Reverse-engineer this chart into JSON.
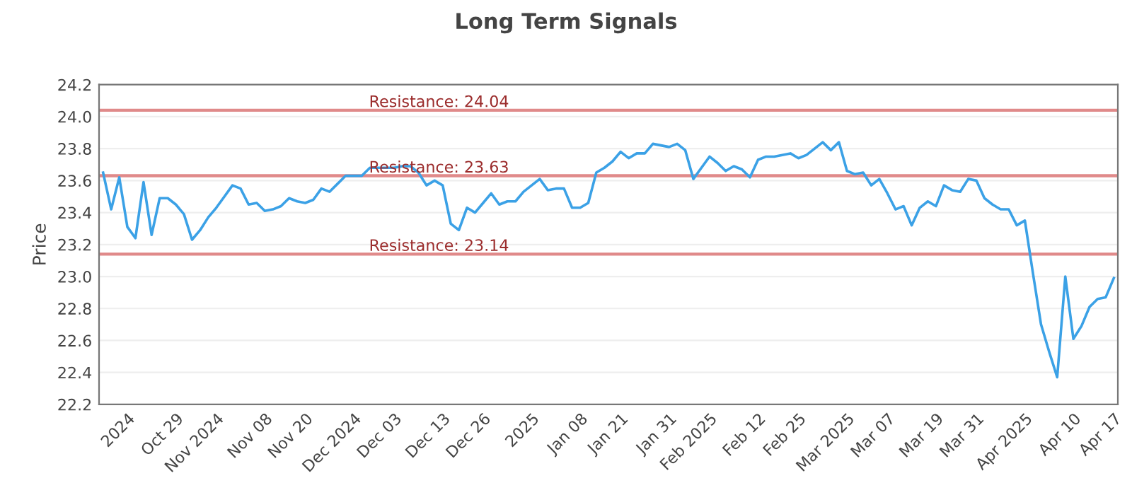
{
  "chart_data": {
    "type": "line",
    "title": "Long Term Signals",
    "ylabel": "Price",
    "categories": [
      null,
      null,
      null,
      "2024",
      null,
      null,
      null,
      null,
      null,
      "Oct 29",
      null,
      null,
      null,
      null,
      "Nov 2024",
      null,
      null,
      null,
      null,
      null,
      "Nov 08",
      null,
      null,
      null,
      null,
      "Nov 20",
      null,
      null,
      null,
      null,
      null,
      "Dec 2024",
      null,
      null,
      null,
      null,
      "Dec 03",
      null,
      null,
      null,
      null,
      null,
      "Dec 13",
      null,
      null,
      null,
      null,
      "Dec 26",
      null,
      null,
      null,
      null,
      null,
      "2025",
      null,
      null,
      null,
      null,
      null,
      "Jan 08",
      null,
      null,
      null,
      null,
      "Jan 21",
      null,
      null,
      null,
      null,
      null,
      "Jan 31",
      null,
      null,
      null,
      null,
      "Feb 2025",
      null,
      null,
      null,
      null,
      null,
      "Feb 12",
      null,
      null,
      null,
      null,
      "Feb 25",
      null,
      null,
      null,
      null,
      null,
      "Mar 2025",
      null,
      null,
      null,
      null,
      "Mar 07",
      null,
      null,
      null,
      null,
      null,
      "Mar 19",
      null,
      null,
      null,
      null,
      "Mar 31",
      null,
      null,
      null,
      null,
      null,
      "Apr 2025",
      null,
      null,
      null,
      null,
      null,
      "Apr 10",
      null,
      null,
      null,
      null,
      "Apr 17"
    ],
    "series": [
      {
        "color": "#3ba1e6",
        "values": [
          23.65,
          23.42,
          23.62,
          23.31,
          23.24,
          23.59,
          23.26,
          23.49,
          23.49,
          23.45,
          23.39,
          23.23,
          23.29,
          23.37,
          23.43,
          23.5,
          23.57,
          23.55,
          23.45,
          23.46,
          23.41,
          23.42,
          23.44,
          23.49,
          23.47,
          23.46,
          23.48,
          23.55,
          23.53,
          23.58,
          23.63,
          23.63,
          23.63,
          23.68,
          23.68,
          23.68,
          23.68,
          23.69,
          23.69,
          23.65,
          23.57,
          23.6,
          23.57,
          23.33,
          23.29,
          23.43,
          23.4,
          23.46,
          23.52,
          23.45,
          23.47,
          23.47,
          23.53,
          23.57,
          23.61,
          23.54,
          23.55,
          23.55,
          23.43,
          23.43,
          23.46,
          23.65,
          23.68,
          23.72,
          23.78,
          23.74,
          23.77,
          23.77,
          23.83,
          23.82,
          23.81,
          23.83,
          23.79,
          23.61,
          23.68,
          23.75,
          23.71,
          23.66,
          23.69,
          23.67,
          23.62,
          23.73,
          23.75,
          23.75,
          23.76,
          23.77,
          23.74,
          23.76,
          23.8,
          23.84,
          23.79,
          23.84,
          23.66,
          23.64,
          23.65,
          23.57,
          23.61,
          23.52,
          23.42,
          23.44,
          23.32,
          23.43,
          23.47,
          23.44,
          23.57,
          23.54,
          23.53,
          23.61,
          23.6,
          23.49,
          23.45,
          23.42,
          23.42,
          23.32,
          23.35,
          23.02,
          22.7,
          22.53,
          22.37,
          23.0,
          22.61,
          22.69,
          22.81,
          22.86,
          22.87,
          22.99
        ]
      }
    ],
    "ylim": [
      22.2,
      24.2
    ],
    "yticks": [
      22.2,
      22.4,
      22.6,
      22.8,
      {
        "value": 23,
        "label": "23.0"
      },
      23.2,
      23.4,
      23.6,
      23.8,
      {
        "value": 24,
        "label": "24.0"
      },
      24.2
    ],
    "grid": "y",
    "marker": "none",
    "line_style": "solid",
    "ref_lines": [
      {
        "axis": "y",
        "value": 24.04,
        "label": "Resistance: 24.04",
        "color": "#e08a8a"
      },
      {
        "axis": "y",
        "value": 23.63,
        "label": "Resistance: 23.63",
        "color": "#e08a8a"
      },
      {
        "axis": "y",
        "value": 23.14,
        "label": "Resistance: 23.14",
        "color": "#e08a8a"
      }
    ]
  }
}
